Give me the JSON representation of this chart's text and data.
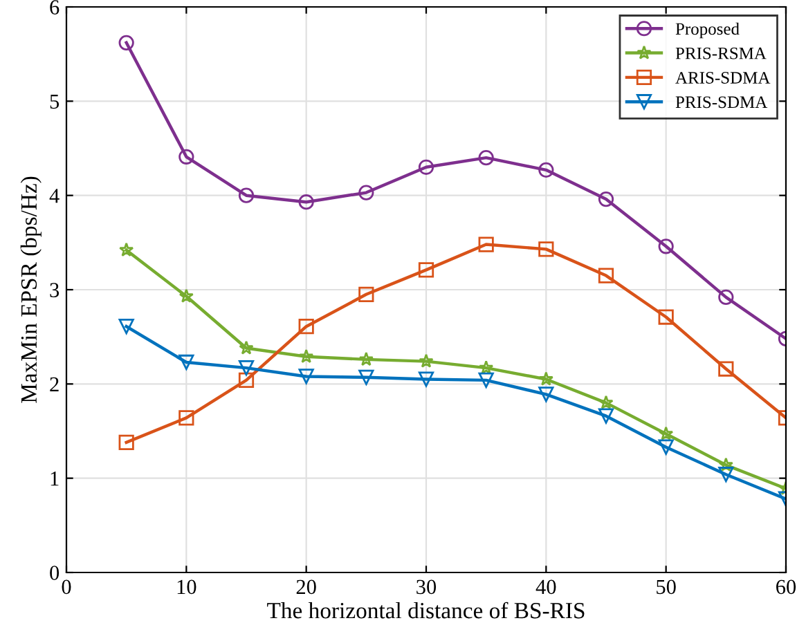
{
  "chart_data": {
    "type": "line",
    "xlabel": "The horizontal distance of BS-RIS",
    "ylabel": "MaxMin EPSR (bps/Hz)",
    "x": [
      5,
      10,
      15,
      20,
      25,
      30,
      35,
      40,
      45,
      50,
      55,
      60
    ],
    "series": [
      {
        "name": "Proposed",
        "color": "#7e2f8e",
        "marker": "circle",
        "values": [
          5.62,
          4.41,
          4.0,
          3.93,
          4.03,
          4.3,
          4.4,
          4.27,
          3.96,
          3.46,
          2.92,
          2.48
        ]
      },
      {
        "name": "PRIS-RSMA",
        "color": "#77ac30",
        "marker": "star",
        "values": [
          3.42,
          2.93,
          2.38,
          2.29,
          2.26,
          2.24,
          2.17,
          2.05,
          1.8,
          1.47,
          1.14,
          0.89
        ]
      },
      {
        "name": "ARIS-SDMA",
        "color": "#d95319",
        "marker": "square",
        "values": [
          1.38,
          1.64,
          2.04,
          2.61,
          2.95,
          3.21,
          3.48,
          3.43,
          3.15,
          2.71,
          2.16,
          1.64
        ]
      },
      {
        "name": "PRIS-SDMA",
        "color": "#0072bd",
        "marker": "triangle",
        "values": [
          2.61,
          2.23,
          2.17,
          2.08,
          2.07,
          2.05,
          2.04,
          1.89,
          1.66,
          1.33,
          1.04,
          0.78
        ]
      }
    ],
    "xlim": [
      0,
      60
    ],
    "xticks": [
      0,
      10,
      20,
      30,
      40,
      50,
      60
    ],
    "ylim": [
      0,
      6
    ],
    "yticks": [
      0,
      1,
      2,
      3,
      4,
      5,
      6
    ],
    "grid": true,
    "legend": "top right",
    "line_style": "solid"
  }
}
